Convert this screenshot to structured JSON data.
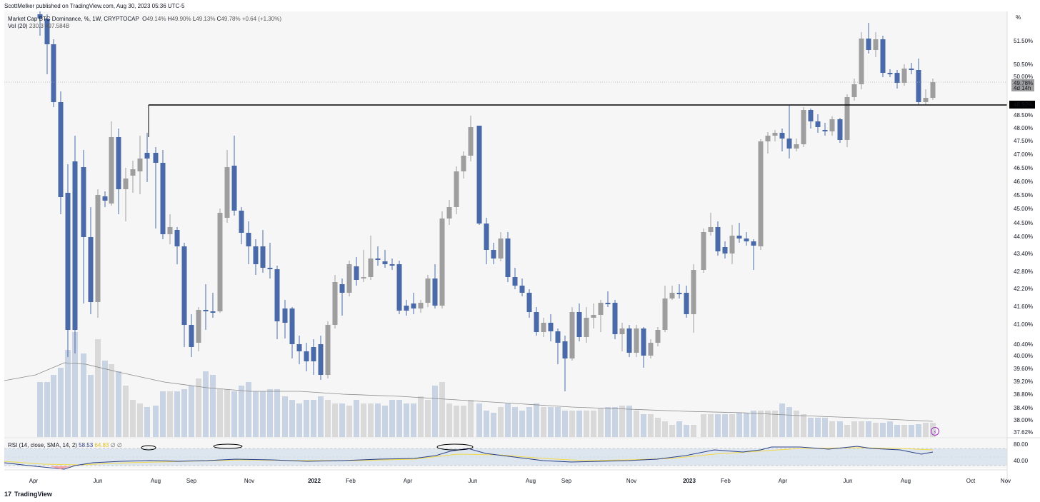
{
  "header": {
    "published": "ScottMelker published on TradingView.com, Aug 30, 2023 05:36 UTC-5",
    "symbol_text": "Market Cap BTC Dominance, %, 1W, CRYPTOCAP",
    "ohlc": {
      "o_label": "O",
      "o": "49.14%",
      "h_label": "H",
      "h": "49.90%",
      "l_label": "L",
      "l": "49.13%",
      "c_label": "C",
      "c": "49.78%",
      "change": "+0.64 (+1.30%)"
    },
    "vol_label": "Vol (20)",
    "vol_values": [
      "230.3",
      "497.584B"
    ],
    "scale_button": "%"
  },
  "rsi": {
    "label": "RSI (14, close, SMA, 14, 2)",
    "value1": "58.53",
    "value2": "64.83",
    "extra": "∅ ∅",
    "levels": [
      "80.00",
      "40.00"
    ]
  },
  "footer": {
    "brand": "TradingView",
    "logo": "17"
  },
  "colors": {
    "up": "#9e9e9e",
    "down": "#4a69a8",
    "vol_up": "#d9d9d9",
    "vol_down": "#c8d3e3",
    "rsi_line": "#2b3f86",
    "rsi_ma": "#f4e04a",
    "rsi_band": "#d8e2ec"
  },
  "chart_data": {
    "type": "candlestick",
    "y_ticks": [
      "51.50%",
      "50.50%",
      "50.00%",
      "49.78%",
      "48.92%",
      "48.50%",
      "48.00%",
      "47.50%",
      "47.00%",
      "46.50%",
      "46.00%",
      "45.50%",
      "45.00%",
      "44.50%",
      "44.00%",
      "43.40%",
      "42.80%",
      "42.20%",
      "41.60%",
      "41.00%",
      "40.40%",
      "40.00%",
      "39.60%",
      "39.20%",
      "38.80%",
      "38.40%",
      "38.00%",
      "37.62%"
    ],
    "price_label": {
      "value": "49.78%",
      "countdown": "4d 14h"
    },
    "resistance_label": "48.92%",
    "resistance_level": 48.92,
    "x_ticks": [
      "Apr",
      "Jun",
      "Aug",
      "Sep",
      "Nov",
      "2022",
      "Feb",
      "Apr",
      "Jun",
      "Aug",
      "Sep",
      "Nov",
      "2023",
      "Feb",
      "Apr",
      "Jun",
      "Aug",
      "Oct",
      "Nov"
    ]
  }
}
